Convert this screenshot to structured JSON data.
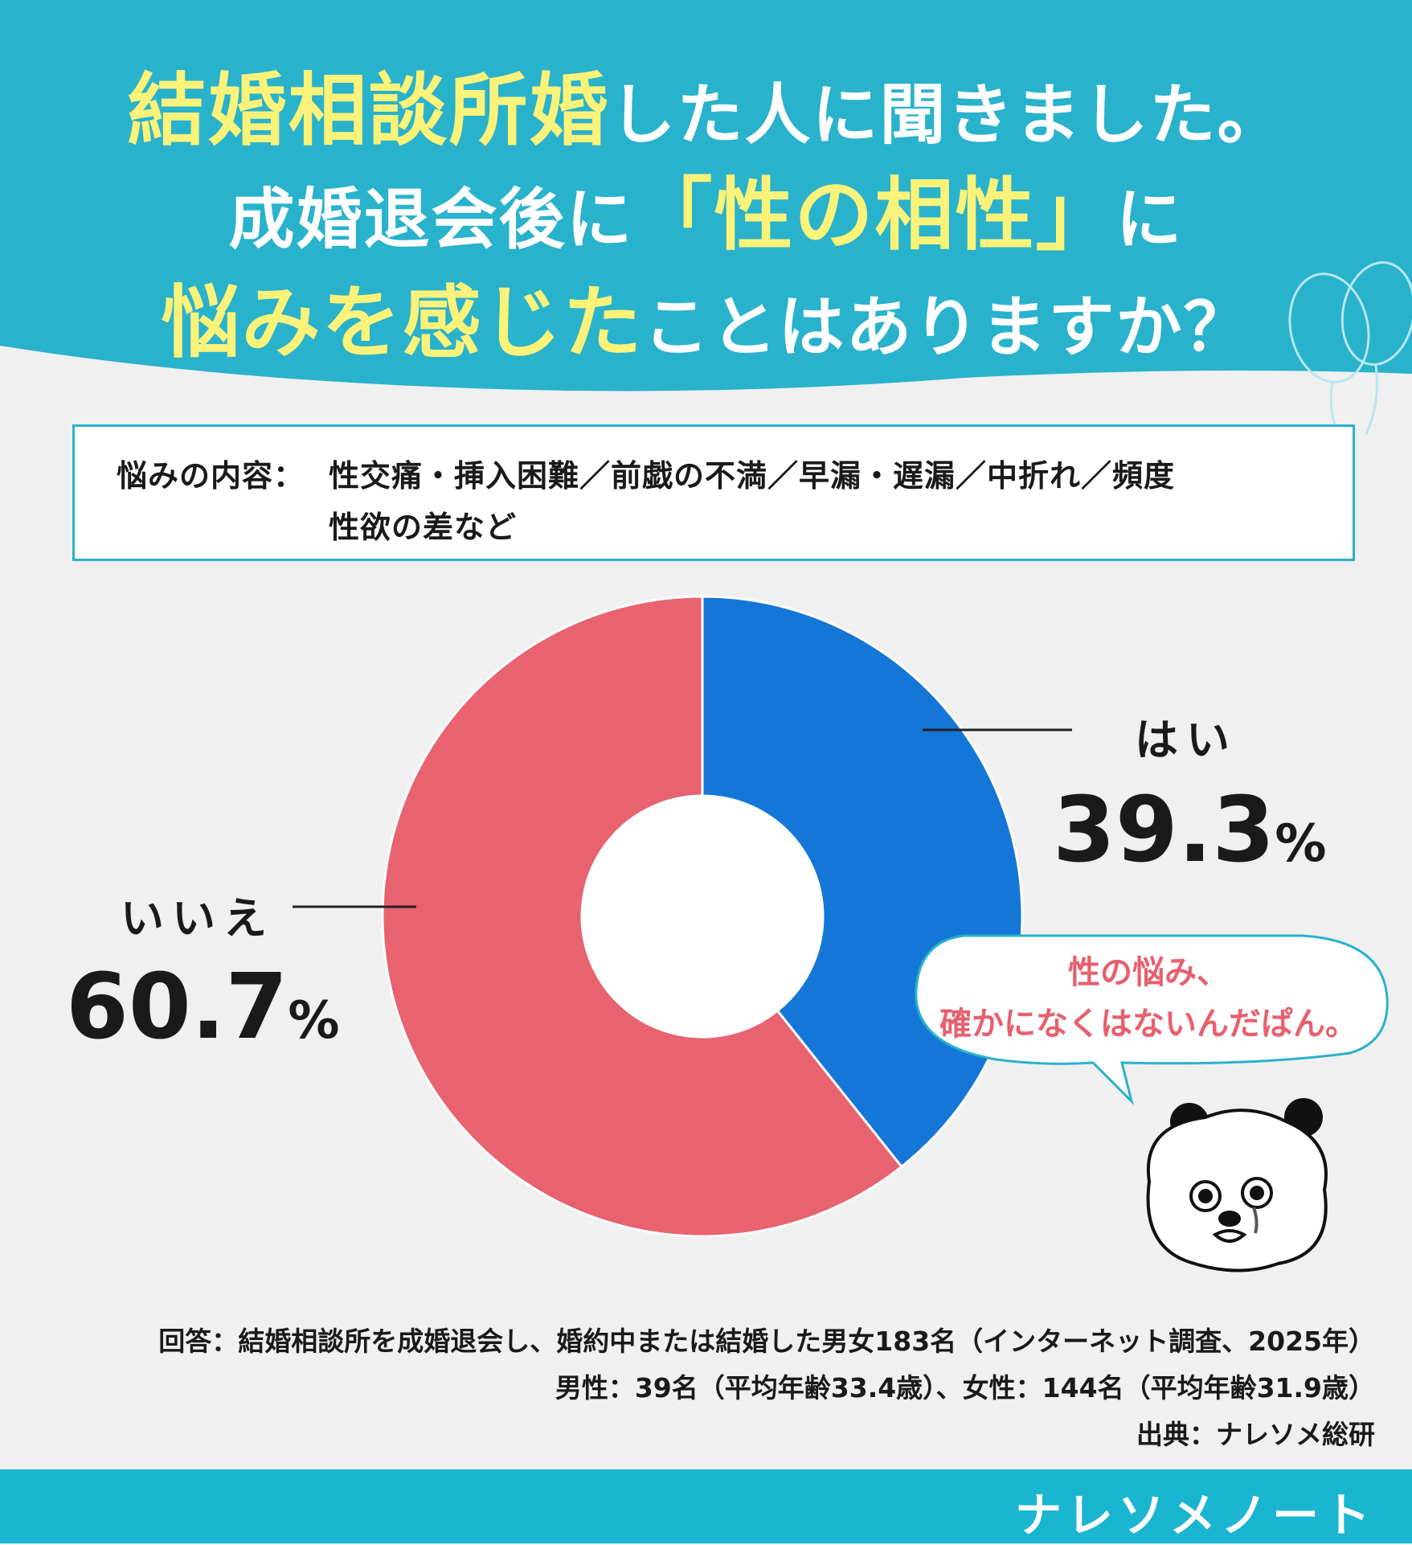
{
  "header": {
    "line1_highlight": "結婚相談所婚",
    "line1_rest": "した人に聞きました。",
    "line2_pre": "成婚退会後に",
    "line2_highlight": "「性の相性」",
    "line2_post": "に",
    "line3_highlight": "悩みを感じた",
    "line3_rest": "ことはありますか？"
  },
  "note": {
    "label": "悩みの内容：",
    "line1": "性交痛・挿入困難／前戯の不満／早漏・遅漏／中折れ／頻度",
    "line2": "性欲の差など"
  },
  "chart_data": {
    "type": "pie",
    "donut": true,
    "categories": [
      "はい",
      "いいえ"
    ],
    "values": [
      39.3,
      60.7
    ],
    "unit": "%",
    "colors": [
      "#1477d8",
      "#e8626f"
    ]
  },
  "labels": {
    "yes_name": "はい",
    "yes_value": "39.3",
    "no_name": "いいえ",
    "no_value": "60.7",
    "percent_sign": "%"
  },
  "bubble": {
    "line1": "性の悩み、",
    "line2": "確かになくはないんだぱん。"
  },
  "footer": {
    "line1": "回答：結婚相談所を成婚退会し、婚約中または結婚した男女183名（インターネット調査、2025年）",
    "line2": "男性：39名（平均年齢33.4歳）、女性：144名（平均年齢31.9歳）",
    "line3": "出典：ナレソメ総研"
  },
  "brand": {
    "name": "ナレソメノート"
  },
  "icons": [
    "balloon-icon",
    "panda-mascot-icon"
  ]
}
